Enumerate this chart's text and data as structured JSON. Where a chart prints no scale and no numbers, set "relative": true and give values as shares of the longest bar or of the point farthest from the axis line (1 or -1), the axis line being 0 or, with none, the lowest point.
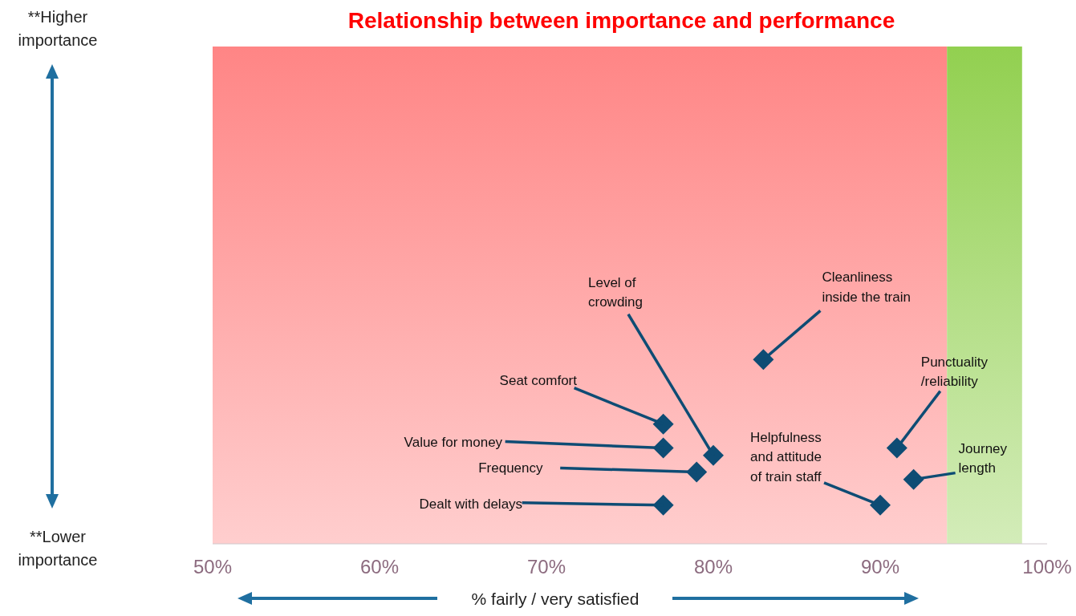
{
  "chart_data": {
    "type": "scatter",
    "title": "Relationship between importance and performance",
    "xlabel": "% fairly / very satisfied",
    "relative": true,
    "x": [
      83,
      77,
      77,
      80,
      79,
      77,
      91,
      92,
      90
    ],
    "series": [
      {
        "color": "#0e4c74",
        "values": [
          1,
          0.65,
          0.52,
          0.48,
          0.39,
          0.21,
          0.52,
          0.35,
          0.21
        ]
      }
    ],
    "xlim": [
      50,
      100
    ],
    "xticks": [
      {
        "value": 50,
        "label": "50%"
      },
      {
        "value": 60,
        "label": "60%"
      },
      {
        "value": 70,
        "label": "70%"
      },
      {
        "value": 80,
        "label": "80%"
      },
      {
        "value": 90,
        "label": "90%"
      },
      {
        "value": 100,
        "label": "100%"
      }
    ],
    "marker": "diamond",
    "bands": [
      {
        "axis": "x",
        "from": 50,
        "to": 94,
        "color": "#ff8585"
      },
      {
        "axis": "x",
        "from": 94,
        "to": 98.5,
        "color": "#92d050"
      }
    ],
    "annotations": [
      {
        "text": "Cleanliness\ninside the train",
        "x": 83,
        "y": 1
      },
      {
        "text": "Seat comfort",
        "x": 77,
        "y": 0.65
      },
      {
        "text": "Value for money",
        "x": 77,
        "y": 0.52
      },
      {
        "text": "Level of\ncrowding",
        "x": 80,
        "y": 0.48
      },
      {
        "text": "Frequency",
        "x": 79,
        "y": 0.39
      },
      {
        "text": "Dealt with delays",
        "x": 77,
        "y": 0.21
      },
      {
        "text": "Punctuality\n/reliability",
        "x": 91,
        "y": 0.52
      },
      {
        "text": "Journey\nlength",
        "x": 92,
        "y": 0.35
      },
      {
        "text": "Helpfulness\nand attitude\nof train staff",
        "x": 90,
        "y": 0.21
      },
      "**Higher\nimportance",
      "**Lower\nimportance"
    ]
  }
}
